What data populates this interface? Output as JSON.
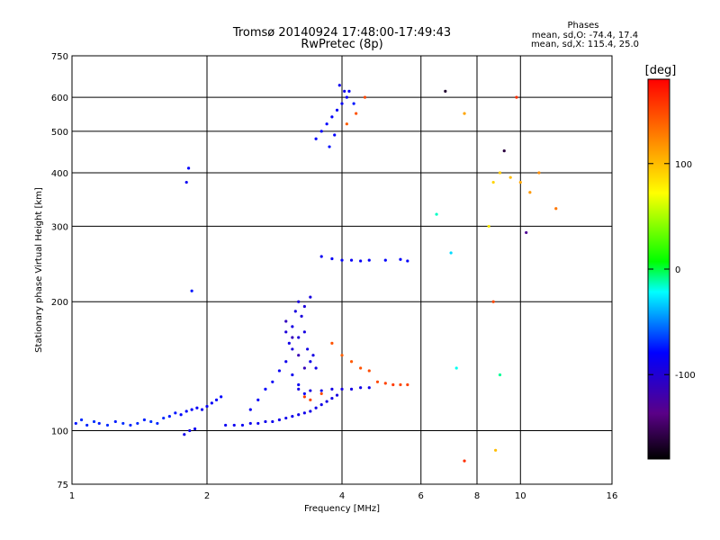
{
  "chart_data": {
    "type": "scatter",
    "title": "Tromsø 20140924 17:48:00-17:49:43",
    "subtitle": "RwPretec (8p)",
    "stats": {
      "heading": "Phases",
      "line_o": "mean, sd,O: -74.4, 17.4",
      "line_x": "mean, sd,X: 115.4, 25.0"
    },
    "xlabel": "Frequency [MHz]",
    "ylabel": "Stationary phase Virtual Height [km]",
    "x_scale": "log",
    "y_scale": "log",
    "xlim": [
      1,
      16
    ],
    "ylim": [
      75,
      750
    ],
    "x_ticks": [
      {
        "value": 1,
        "label": "1"
      },
      {
        "value": 2,
        "label": "2"
      },
      {
        "value": 4,
        "label": "4"
      },
      {
        "value": 6,
        "label": "6"
      },
      {
        "value": 8,
        "label": "8"
      },
      {
        "value": 10,
        "label": "10"
      },
      {
        "value": 16,
        "label": "16"
      }
    ],
    "x_gridlines": [
      2,
      4,
      6,
      8,
      10
    ],
    "y_ticks": [
      {
        "value": 75,
        "label": "75"
      },
      {
        "value": 100,
        "label": "100"
      },
      {
        "value": 200,
        "label": "200"
      },
      {
        "value": 300,
        "label": "300"
      },
      {
        "value": 400,
        "label": "400"
      },
      {
        "value": 500,
        "label": "500"
      },
      {
        "value": 600,
        "label": "600"
      },
      {
        "value": 750,
        "label": "750"
      }
    ],
    "y_gridlines": [
      100,
      200,
      300,
      400,
      500,
      600
    ],
    "grid": true,
    "colorbar": {
      "label": "[deg]",
      "range": [
        -180,
        180
      ],
      "ticks": [
        {
          "value": 100,
          "label": "100"
        },
        {
          "value": 0,
          "label": "0"
        },
        {
          "value": -100,
          "label": "-100"
        }
      ],
      "colors": [
        "#000000",
        "#5a0087",
        "#0000ff",
        "#00ffff",
        "#00ff00",
        "#ffff00",
        "#ff7f00",
        "#ff0000"
      ]
    },
    "series": [
      {
        "points": [
          [
            1.02,
            104,
            -75
          ],
          [
            1.05,
            106,
            -70
          ],
          [
            1.08,
            103,
            -72
          ],
          [
            1.12,
            105,
            -68
          ],
          [
            1.15,
            104,
            -74
          ],
          [
            1.2,
            103,
            -70
          ],
          [
            1.25,
            105,
            -73
          ],
          [
            1.3,
            104,
            -69
          ],
          [
            1.35,
            103,
            -71
          ],
          [
            1.4,
            104,
            -70
          ],
          [
            1.45,
            106,
            -72
          ],
          [
            1.5,
            105,
            -68
          ],
          [
            1.55,
            104,
            -71
          ],
          [
            1.6,
            107,
            -70
          ],
          [
            1.65,
            108,
            -73
          ],
          [
            1.7,
            110,
            -75
          ],
          [
            1.75,
            109,
            -78
          ],
          [
            1.8,
            111,
            -80
          ],
          [
            1.85,
            112,
            -82
          ],
          [
            1.9,
            113,
            -83
          ],
          [
            1.95,
            112,
            -84
          ],
          [
            2.0,
            114,
            -85
          ],
          [
            2.05,
            116,
            -82
          ],
          [
            2.1,
            118,
            -80
          ],
          [
            2.15,
            120,
            -78
          ],
          [
            1.78,
            98,
            -90
          ],
          [
            1.83,
            100,
            -88
          ],
          [
            1.88,
            101,
            -86
          ],
          [
            1.82,
            410,
            -80
          ],
          [
            1.8,
            380,
            -85
          ],
          [
            1.85,
            212,
            -75
          ],
          [
            2.2,
            103,
            -85
          ],
          [
            2.3,
            103,
            -86
          ],
          [
            2.4,
            103,
            -85
          ],
          [
            2.5,
            104,
            -87
          ],
          [
            2.6,
            104,
            -86
          ],
          [
            2.7,
            105,
            -88
          ],
          [
            2.8,
            105,
            -87
          ],
          [
            2.9,
            106,
            -88
          ],
          [
            3.0,
            107,
            -89
          ],
          [
            3.1,
            108,
            -88
          ],
          [
            3.2,
            109,
            -90
          ],
          [
            3.3,
            110,
            -89
          ],
          [
            3.4,
            111,
            -90
          ],
          [
            3.5,
            113,
            -91
          ],
          [
            3.6,
            115,
            -90
          ],
          [
            3.7,
            117,
            -92
          ],
          [
            3.8,
            119,
            -91
          ],
          [
            3.9,
            121,
            -93
          ],
          [
            2.5,
            112,
            -85
          ],
          [
            2.6,
            118,
            -82
          ],
          [
            2.7,
            125,
            -80
          ],
          [
            2.8,
            130,
            -83
          ],
          [
            2.9,
            138,
            -85
          ],
          [
            3.0,
            145,
            -88
          ],
          [
            3.05,
            160,
            -90
          ],
          [
            3.1,
            175,
            -92
          ],
          [
            3.15,
            190,
            -94
          ],
          [
            3.2,
            200,
            -95
          ],
          [
            3.25,
            185,
            -96
          ],
          [
            3.3,
            170,
            -93
          ],
          [
            3.35,
            155,
            -91
          ],
          [
            3.4,
            145,
            -89
          ],
          [
            3.45,
            150,
            -92
          ],
          [
            3.5,
            140,
            -90
          ],
          [
            3.0,
            170,
            -97
          ],
          [
            3.1,
            155,
            -95
          ],
          [
            3.2,
            165,
            -98
          ],
          [
            3.3,
            195,
            -96
          ],
          [
            3.4,
            205,
            -94
          ],
          [
            3.1,
            135,
            -87
          ],
          [
            3.2,
            128,
            -85
          ],
          [
            3.3,
            122,
            -84
          ],
          [
            3.0,
            180,
            -110
          ],
          [
            3.1,
            165,
            -112
          ],
          [
            3.2,
            150,
            -115
          ],
          [
            3.3,
            140,
            -113
          ],
          [
            3.2,
            125,
            -92
          ],
          [
            3.4,
            124,
            -93
          ],
          [
            3.6,
            124,
            -91
          ],
          [
            3.8,
            125,
            -92
          ],
          [
            4.0,
            125,
            -93
          ],
          [
            4.2,
            125,
            -92
          ],
          [
            4.4,
            126,
            -91
          ],
          [
            4.6,
            126,
            -90
          ],
          [
            3.6,
            255,
            -85
          ],
          [
            3.8,
            252,
            -83
          ],
          [
            4.0,
            250,
            -82
          ],
          [
            4.2,
            250,
            -84
          ],
          [
            4.4,
            249,
            -83
          ],
          [
            4.6,
            250,
            -82
          ],
          [
            5.0,
            250,
            -80
          ],
          [
            5.4,
            251,
            -82
          ],
          [
            5.6,
            249,
            -81
          ],
          [
            3.5,
            480,
            -80
          ],
          [
            3.6,
            500,
            -82
          ],
          [
            3.7,
            520,
            -78
          ],
          [
            3.8,
            540,
            -80
          ],
          [
            3.9,
            560,
            -83
          ],
          [
            4.0,
            580,
            -85
          ],
          [
            4.05,
            620,
            -88
          ],
          [
            4.1,
            600,
            -84
          ],
          [
            3.95,
            640,
            -86
          ],
          [
            4.15,
            620,
            -82
          ],
          [
            3.75,
            460,
            -76
          ],
          [
            3.85,
            490,
            -80
          ],
          [
            4.25,
            580,
            -74
          ],
          [
            3.3,
            120,
            155
          ],
          [
            3.4,
            118,
            150
          ],
          [
            3.6,
            122,
            148
          ],
          [
            3.8,
            160,
            145
          ],
          [
            4.0,
            150,
            140
          ],
          [
            4.2,
            145,
            142
          ],
          [
            4.4,
            140,
            145
          ],
          [
            4.6,
            138,
            148
          ],
          [
            4.8,
            130,
            150
          ],
          [
            5.0,
            129,
            152
          ],
          [
            5.2,
            128,
            155
          ],
          [
            5.4,
            128,
            150
          ],
          [
            5.6,
            128,
            152
          ],
          [
            4.5,
            600,
            150
          ],
          [
            4.3,
            550,
            145
          ],
          [
            4.1,
            520,
            140
          ],
          [
            6.5,
            320,
            -15
          ],
          [
            7.0,
            260,
            -30
          ],
          [
            8.5,
            300,
            80
          ],
          [
            8.7,
            380,
            90
          ],
          [
            9.0,
            400,
            95
          ],
          [
            9.5,
            390,
            100
          ],
          [
            10.0,
            380,
            110
          ],
          [
            10.5,
            360,
            115
          ],
          [
            11.0,
            400,
            120
          ],
          [
            12.0,
            330,
            130
          ],
          [
            7.5,
            550,
            110
          ],
          [
            9.8,
            600,
            160
          ],
          [
            10.3,
            290,
            -130
          ],
          [
            9.2,
            450,
            -160
          ],
          [
            6.8,
            620,
            -165
          ],
          [
            7.2,
            140,
            -20
          ],
          [
            8.7,
            200,
            150
          ],
          [
            9.0,
            135,
            -10
          ],
          [
            8.8,
            90,
            100
          ],
          [
            7.5,
            85,
            160
          ]
        ]
      }
    ]
  }
}
